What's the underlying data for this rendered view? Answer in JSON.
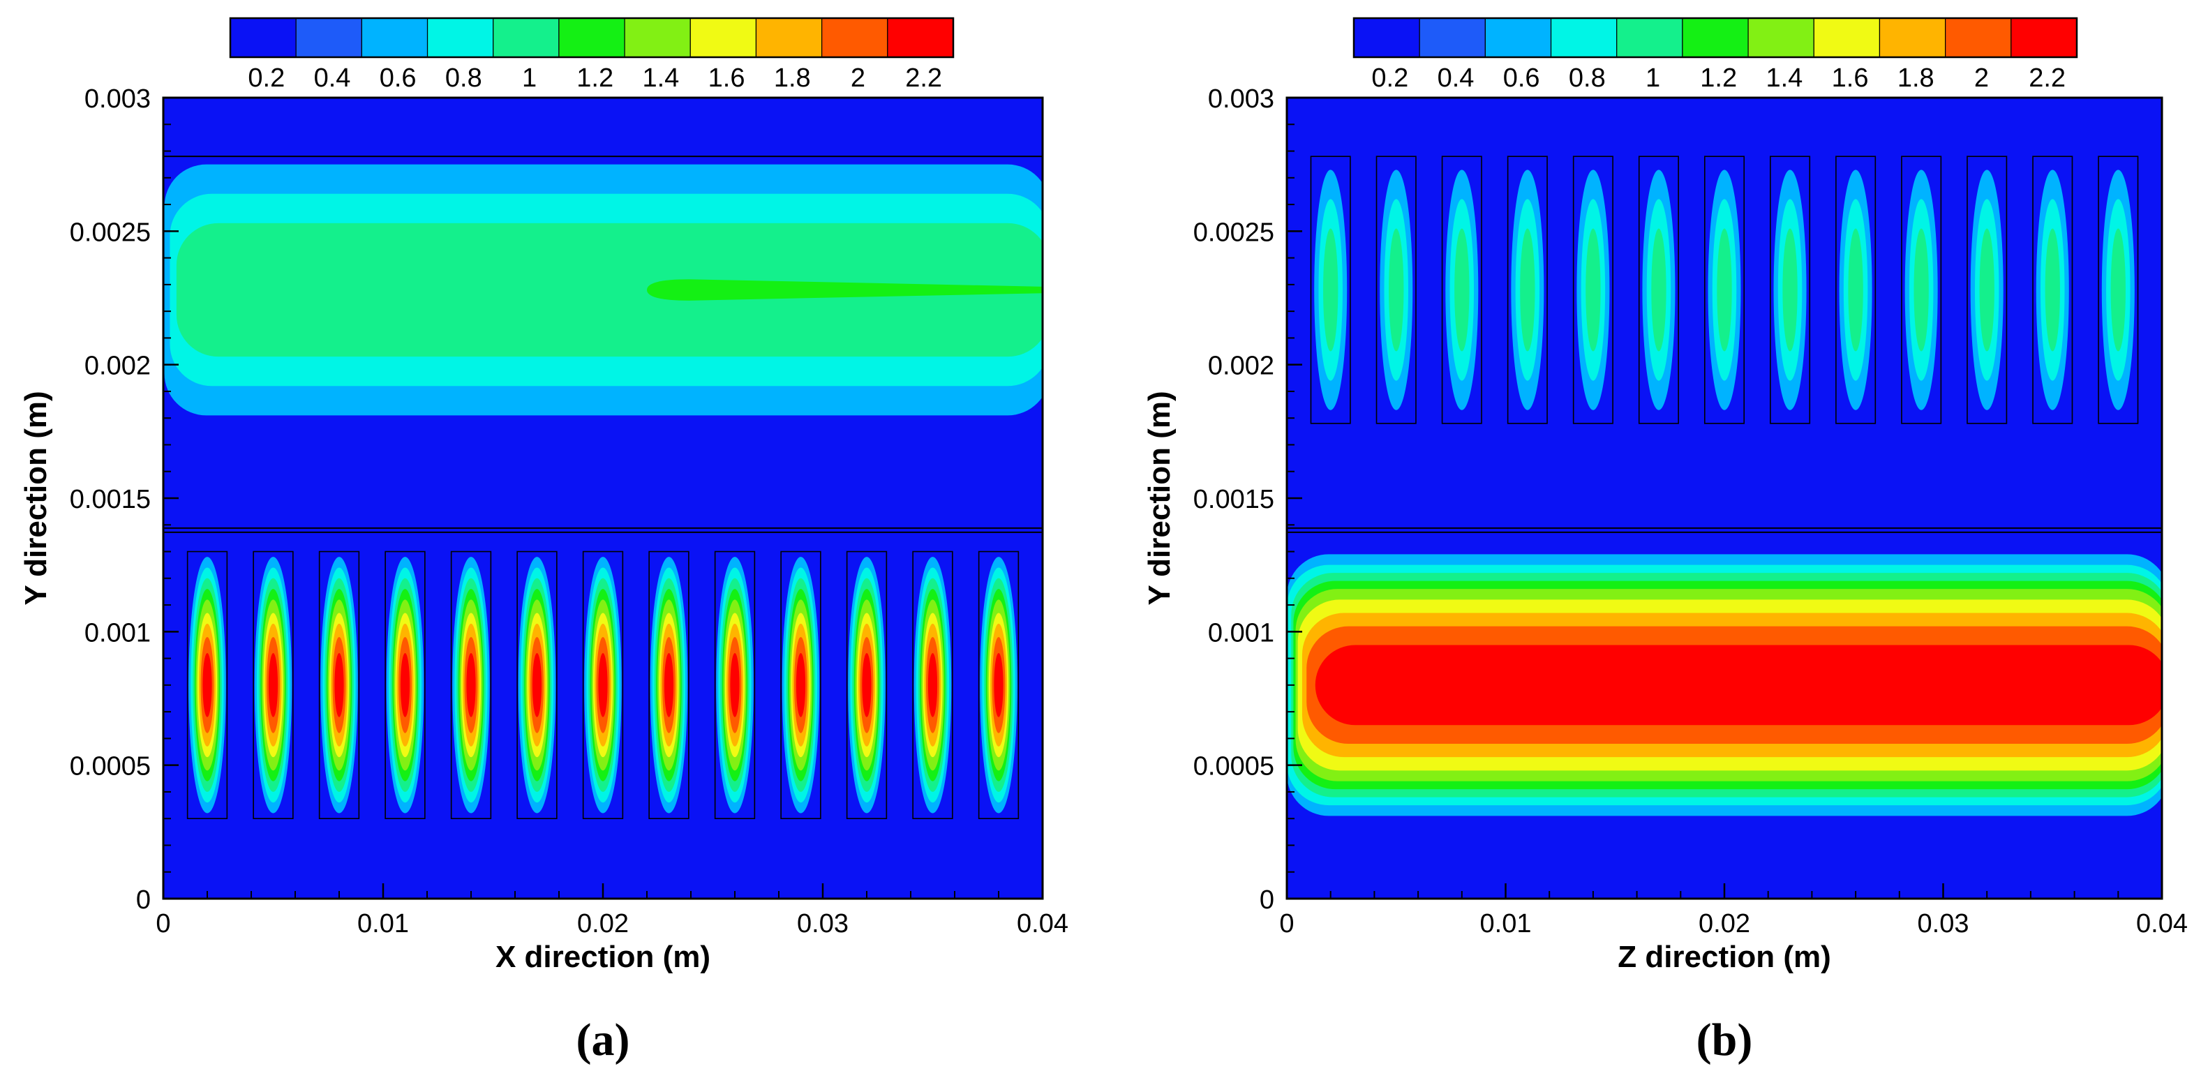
{
  "chart_data": [
    {
      "type": "heatmap",
      "panel_label": "(a)",
      "xlabel": "X direction (m)",
      "ylabel": "Y direction (m)",
      "xlim": [
        0,
        0.04
      ],
      "ylim": [
        0,
        0.003
      ],
      "x_ticks": [
        "0",
        "0.01",
        "0.02",
        "0.03",
        "0.04"
      ],
      "y_ticks": [
        "0",
        "0.0005",
        "0.001",
        "0.0015",
        "0.002",
        "0.0025",
        "0.003"
      ],
      "colorbar": {
        "labels": [
          "0.2",
          "0.4",
          "0.6",
          "0.8",
          "1",
          "1.2",
          "1.4",
          "1.6",
          "1.8",
          "2",
          "2.2"
        ],
        "colors": [
          "#0a12f5",
          "#1e5bf9",
          "#00b3ff",
          "#00f5e6",
          "#14f08c",
          "#14f014",
          "#82f014",
          "#f0fa14",
          "#ffb400",
          "#ff5a00",
          "#ff0000"
        ]
      },
      "interface_y": 0.00138,
      "upper_region": {
        "shape": "band",
        "y_center": 0.00228,
        "levels": [
          {
            "value": 0.4,
            "half_height": 0.00047,
            "x_start": 5e-05
          },
          {
            "value": 0.6,
            "half_height": 0.00036,
            "x_start": 0.0003
          },
          {
            "value": 0.8,
            "half_height": 0.00025,
            "x_start": 0.0006
          },
          {
            "value": 1.0,
            "half_height": 4e-05,
            "x_start": 0.022
          }
        ],
        "cell_grid": {
          "x_centers": [],
          "y_range": [
            0.00178,
            0.00278
          ]
        }
      },
      "lower_region": {
        "shape": "cells",
        "y_center": 0.0008,
        "cell_grid": {
          "x_centers": [
            0.002,
            0.005,
            0.008,
            0.011,
            0.014,
            0.017,
            0.02,
            0.023,
            0.026,
            0.029,
            0.032,
            0.035,
            0.038
          ],
          "half_width": 0.0009,
          "y_range": [
            0.0003,
            0.0013
          ]
        },
        "levels": [
          {
            "value": 0.4,
            "half_width": 0.00085,
            "half_height": 0.00048
          },
          {
            "value": 0.6,
            "half_width": 0.00075,
            "half_height": 0.00044
          },
          {
            "value": 0.8,
            "half_width": 0.00066,
            "half_height": 0.0004
          },
          {
            "value": 1.0,
            "half_width": 0.00058,
            "half_height": 0.00036
          },
          {
            "value": 1.2,
            "half_width": 0.00052,
            "half_height": 0.00032
          },
          {
            "value": 1.4,
            "half_width": 0.00045,
            "half_height": 0.00027
          },
          {
            "value": 1.6,
            "half_width": 0.00038,
            "half_height": 0.00023
          },
          {
            "value": 1.8,
            "half_width": 0.0003,
            "half_height": 0.00018
          },
          {
            "value": 2.0,
            "half_width": 0.00021,
            "half_height": 0.00012
          },
          {
            "value": 2.2,
            "half_width": 8e-05,
            "half_height": 6e-05
          }
        ]
      }
    },
    {
      "type": "heatmap",
      "panel_label": "(b)",
      "xlabel": "Z direction (m)",
      "ylabel": "Y direction (m)",
      "xlim": [
        0,
        0.04
      ],
      "ylim": [
        0,
        0.003
      ],
      "x_ticks": [
        "0",
        "0.01",
        "0.02",
        "0.03",
        "0.04"
      ],
      "y_ticks": [
        "0",
        "0.0005",
        "0.001",
        "0.0015",
        "0.002",
        "0.0025",
        "0.003"
      ],
      "colorbar": {
        "labels": [
          "0.2",
          "0.4",
          "0.6",
          "0.8",
          "1",
          "1.2",
          "1.4",
          "1.6",
          "1.8",
          "2",
          "2.2"
        ],
        "colors": [
          "#0a12f5",
          "#1e5bf9",
          "#00b3ff",
          "#00f5e6",
          "#14f08c",
          "#14f014",
          "#82f014",
          "#f0fa14",
          "#ffb400",
          "#ff5a00",
          "#ff0000"
        ]
      },
      "interface_y": 0.00138,
      "upper_region": {
        "shape": "cells",
        "y_center": 0.00228,
        "cell_grid": {
          "x_centers": [
            0.002,
            0.005,
            0.008,
            0.011,
            0.014,
            0.017,
            0.02,
            0.023,
            0.026,
            0.029,
            0.032,
            0.035,
            0.038
          ],
          "half_width": 0.0009,
          "y_range": [
            0.00178,
            0.00278
          ]
        },
        "levels": [
          {
            "value": 0.4,
            "half_width": 0.00075,
            "half_height": 0.00045
          },
          {
            "value": 0.6,
            "half_width": 0.00055,
            "half_height": 0.00034
          },
          {
            "value": 0.8,
            "half_width": 0.00034,
            "half_height": 0.00023
          }
        ]
      },
      "lower_region": {
        "shape": "band",
        "y_center": 0.0008,
        "levels": [
          {
            "value": 0.4,
            "half_height": 0.00049,
            "x_start": 0.0
          },
          {
            "value": 0.6,
            "half_height": 0.00045,
            "x_start": 0.0
          },
          {
            "value": 0.8,
            "half_height": 0.00042,
            "x_start": 0.0002
          },
          {
            "value": 1.0,
            "half_height": 0.00039,
            "x_start": 0.0003
          },
          {
            "value": 1.2,
            "half_height": 0.00036,
            "x_start": 0.0004
          },
          {
            "value": 1.4,
            "half_height": 0.00032,
            "x_start": 0.0005
          },
          {
            "value": 1.6,
            "half_height": 0.00027,
            "x_start": 0.0007
          },
          {
            "value": 1.8,
            "half_height": 0.00022,
            "x_start": 0.0009
          },
          {
            "value": 2.0,
            "half_height": 0.00015,
            "x_start": 0.0013
          },
          {
            "value": 2.2,
            "half_height": 6e-05,
            "x_start": 0.0028
          }
        ]
      }
    }
  ]
}
